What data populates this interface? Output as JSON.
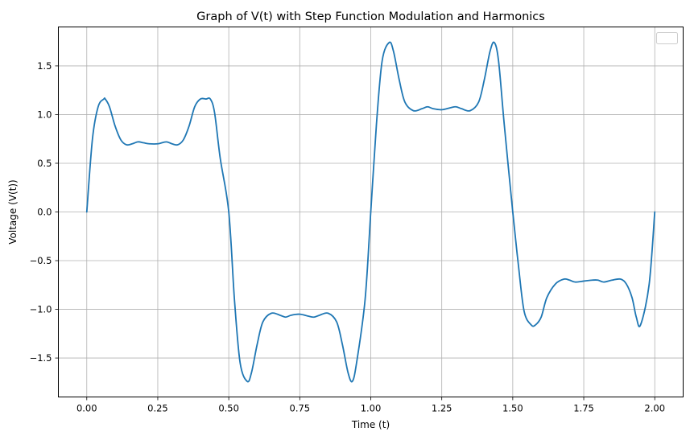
{
  "chart_data": {
    "type": "line",
    "title": "Graph of V(t) with Step Function Modulation and Harmonics",
    "xlabel": "Time (t)",
    "ylabel": "Voltage (V(t))",
    "xlim": [
      -0.1,
      2.1
    ],
    "ylim": [
      -1.9,
      1.9
    ],
    "x_ticks": [
      0.0,
      0.25,
      0.5,
      0.75,
      1.0,
      1.25,
      1.5,
      1.75,
      2.0
    ],
    "x_tick_labels": [
      "0.00",
      "0.25",
      "0.50",
      "0.75",
      "1.00",
      "1.25",
      "1.50",
      "1.75",
      "2.00"
    ],
    "y_ticks": [
      -1.5,
      -1.0,
      -0.5,
      0.0,
      0.5,
      1.0,
      1.5
    ],
    "y_tick_labels": [
      "−1.5",
      "−1.0",
      "−0.5",
      "0.0",
      "0.5",
      "1.0",
      "1.5"
    ],
    "grid": true,
    "legend": "top-right",
    "line_color": "#1f77b4",
    "series": [
      {
        "x": [
          0.0,
          0.02,
          0.04,
          0.06,
          0.065,
          0.08,
          0.1,
          0.12,
          0.14,
          0.16,
          0.18,
          0.2,
          0.22,
          0.25,
          0.28,
          0.3,
          0.32,
          0.34,
          0.36,
          0.38,
          0.4,
          0.42,
          0.435,
          0.45,
          0.47,
          0.5,
          0.52,
          0.54,
          0.565,
          0.58,
          0.6,
          0.62,
          0.65,
          0.68,
          0.7,
          0.72,
          0.75,
          0.78,
          0.8,
          0.82,
          0.85,
          0.88,
          0.9,
          0.92,
          0.935,
          0.95,
          0.98,
          1.0,
          1.02,
          1.04,
          1.065,
          1.08,
          1.1,
          1.12,
          1.15,
          1.18,
          1.2,
          1.22,
          1.25,
          1.28,
          1.3,
          1.32,
          1.35,
          1.38,
          1.4,
          1.42,
          1.435,
          1.45,
          1.47,
          1.5,
          1.52,
          1.54,
          1.565,
          1.58,
          1.6,
          1.62,
          1.65,
          1.68,
          1.7,
          1.72,
          1.75,
          1.78,
          1.8,
          1.82,
          1.85,
          1.88,
          1.9,
          1.92,
          1.935,
          1.95,
          1.98,
          2.0
        ],
        "y": [
          0.0,
          0.75,
          1.08,
          1.16,
          1.16,
          1.08,
          0.88,
          0.74,
          0.69,
          0.7,
          0.72,
          0.71,
          0.7,
          0.7,
          0.72,
          0.7,
          0.69,
          0.74,
          0.88,
          1.08,
          1.16,
          1.16,
          1.16,
          1.02,
          0.55,
          0.0,
          -0.9,
          -1.55,
          -1.74,
          -1.65,
          -1.36,
          -1.13,
          -1.04,
          -1.06,
          -1.08,
          -1.06,
          -1.05,
          -1.07,
          -1.08,
          -1.06,
          -1.04,
          -1.13,
          -1.36,
          -1.65,
          -1.74,
          -1.55,
          -0.9,
          0.0,
          0.9,
          1.55,
          1.74,
          1.65,
          1.36,
          1.13,
          1.04,
          1.06,
          1.08,
          1.06,
          1.05,
          1.07,
          1.08,
          1.06,
          1.04,
          1.13,
          1.36,
          1.65,
          1.74,
          1.55,
          0.9,
          0.0,
          -0.55,
          -1.02,
          -1.16,
          -1.16,
          -1.08,
          -0.88,
          -0.74,
          -0.69,
          -0.7,
          -0.72,
          -0.71,
          -0.7,
          -0.7,
          -0.72,
          -0.7,
          -0.69,
          -0.74,
          -0.88,
          -1.08,
          -1.16,
          -0.75,
          0.0
        ]
      }
    ]
  }
}
